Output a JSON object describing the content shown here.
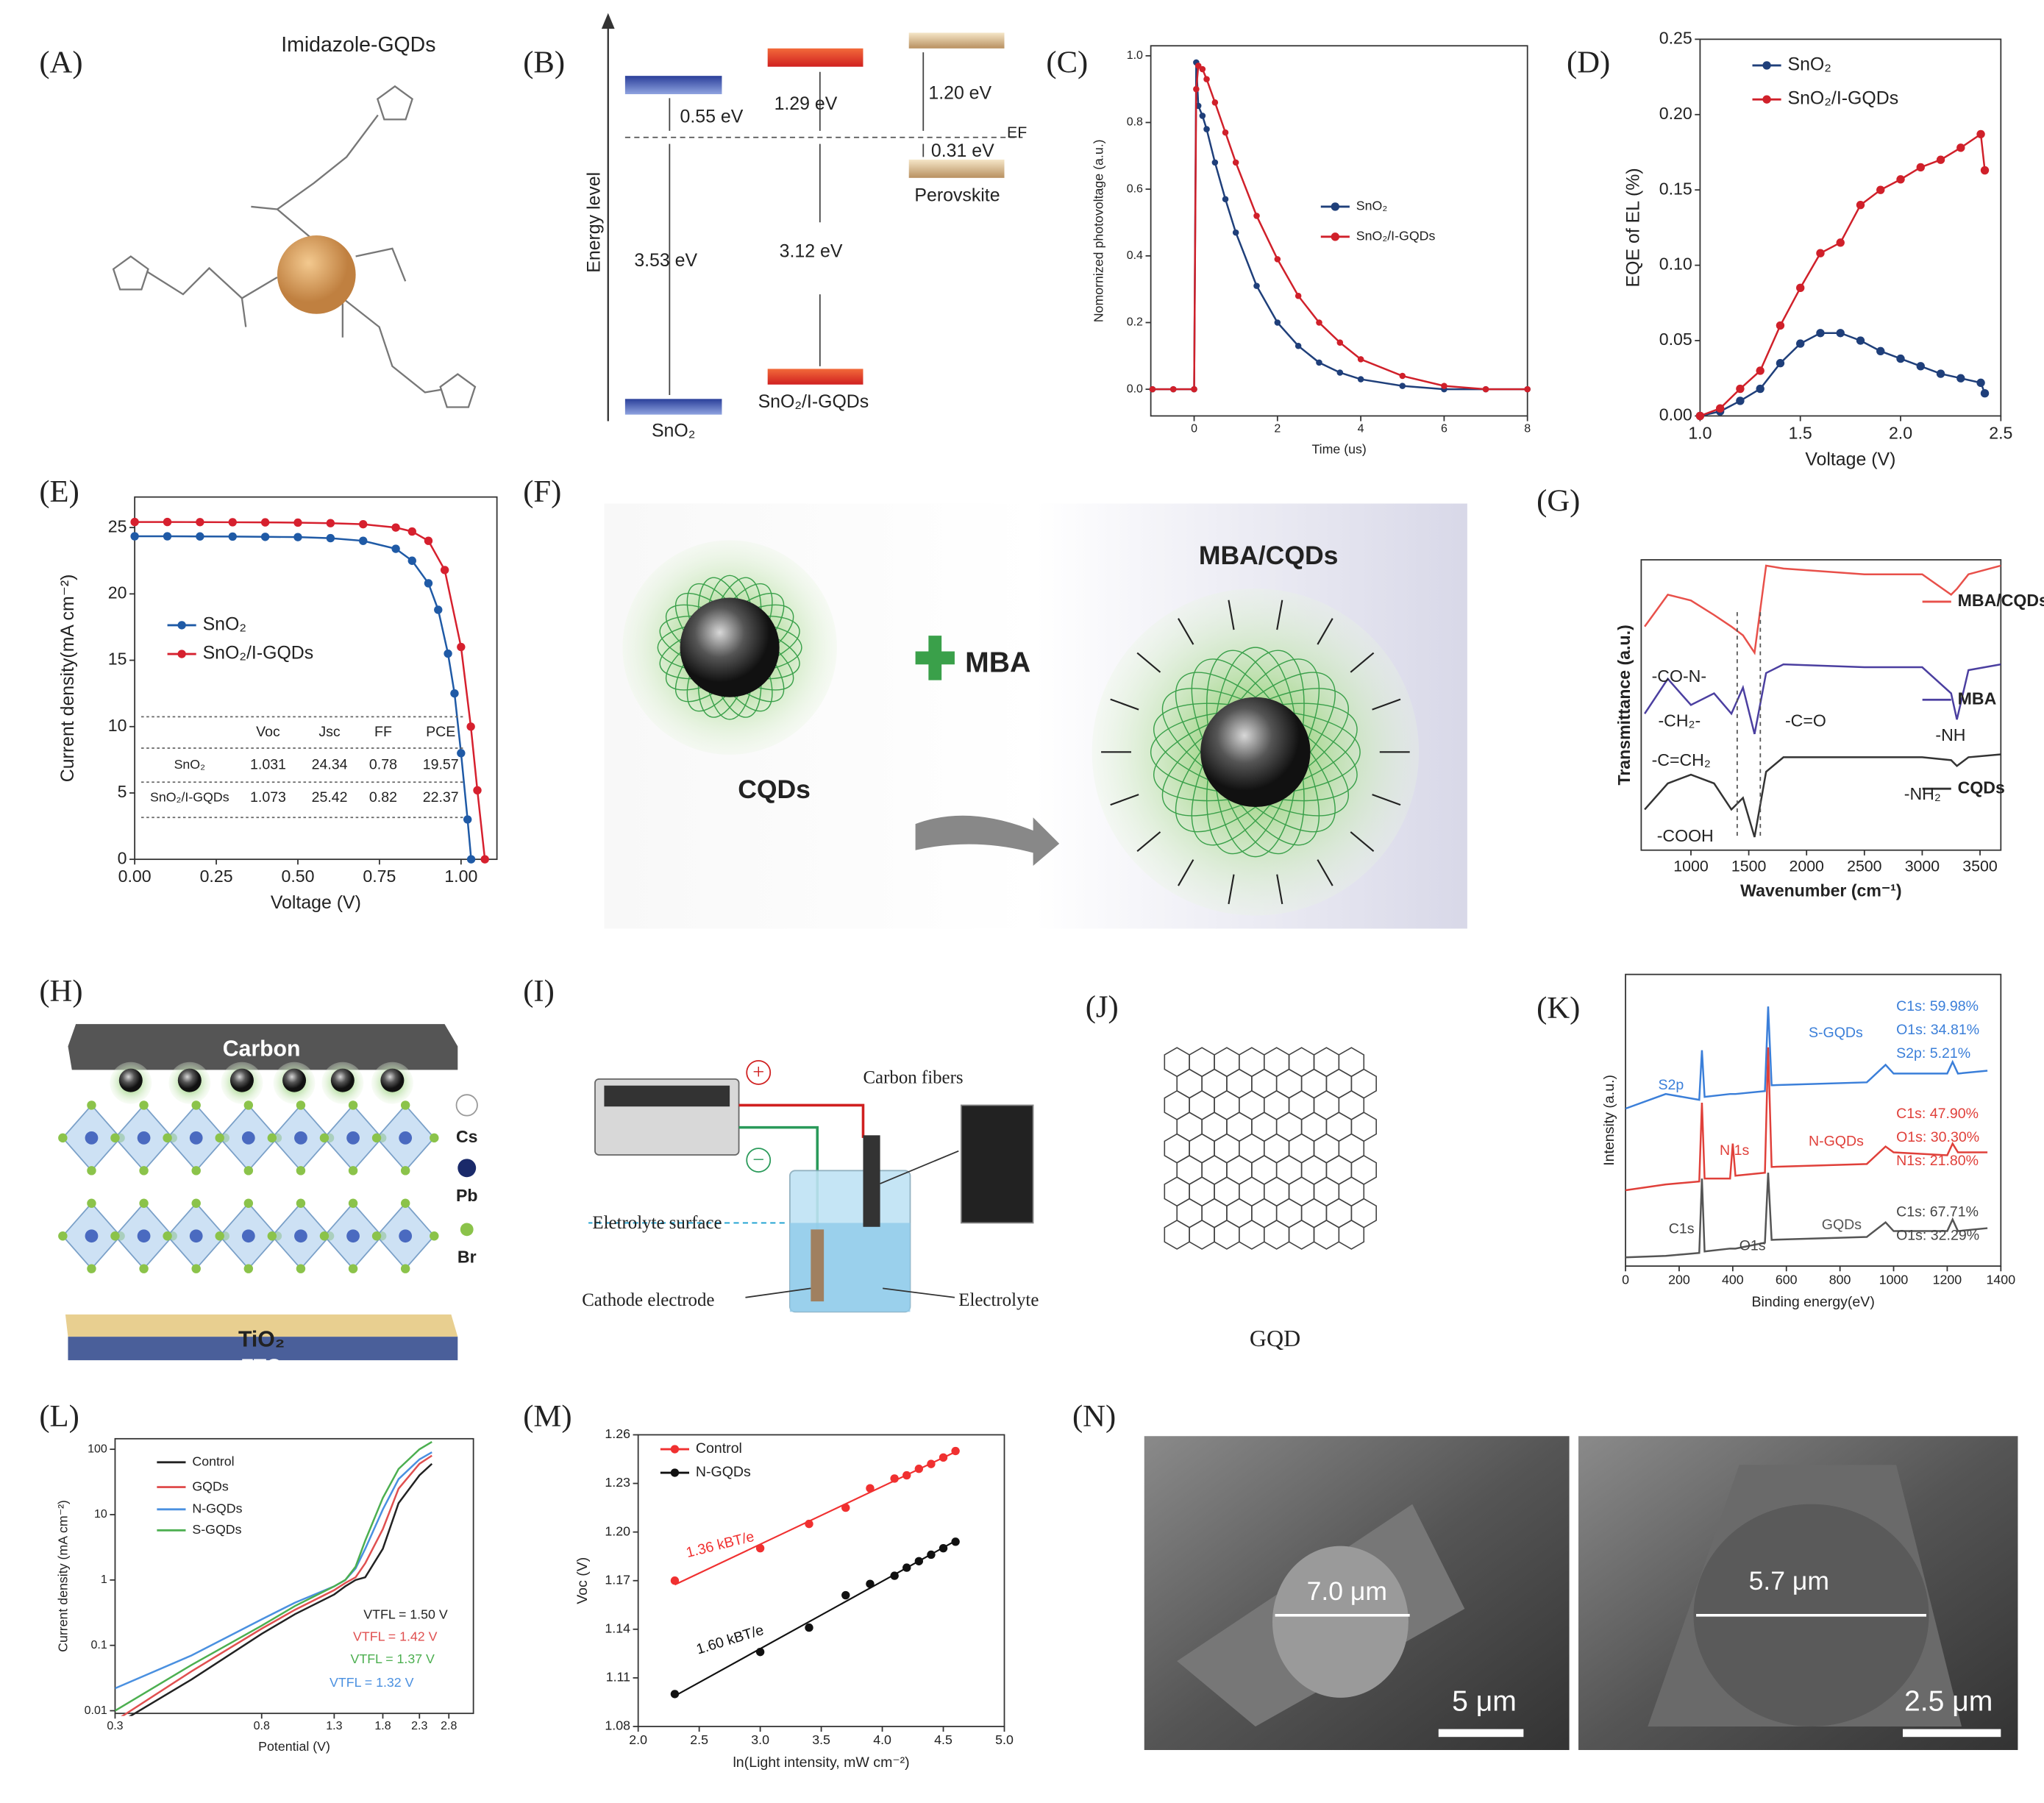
{
  "figure": {
    "panel_labels": [
      "(A)",
      "(B)",
      "(C)",
      "(D)",
      "(E)",
      "(F)",
      "(G)",
      "(H)",
      "(I)",
      "(J)",
      "(K)",
      "(L)",
      "(M)",
      "(N)"
    ],
    "A": {
      "label": "Imidazole-GQDs"
    },
    "B": {
      "y_label": "Energy level",
      "texts": [
        "0.55 eV",
        "1.29 eV",
        "1.20 eV",
        "EF",
        "0.31 eV",
        "Perovskite",
        "3.53 eV",
        "3.12 eV",
        "SnO₂",
        "SnO₂/I-GQDs"
      ]
    },
    "F": {
      "texts": [
        "CQDs",
        "MBA",
        "MBA/CQDs"
      ]
    },
    "H": {
      "texts": [
        "Carbon",
        "Cs",
        "Pb",
        "Br",
        "TiO₂",
        "FTO"
      ]
    },
    "I": {
      "texts": [
        "Carbon fibers",
        "Eletrolyte surface",
        "Cathode electrode",
        "Electrolyte",
        "+",
        "−"
      ]
    },
    "J": {
      "texts": [
        "GQD"
      ]
    },
    "N": {
      "texts": [
        "7.0 μm",
        "5 μm",
        "5.7 μm",
        "2.5 μm"
      ]
    }
  },
  "chart_data": [
    {
      "type": "line",
      "markers": true,
      "x_label": "Time (us)",
      "y_label": "Nomornized photovoltage (a.u.)",
      "xlim": [
        -1.04,
        8
      ],
      "ylim": [
        -0.08,
        1.03
      ],
      "xticks": [
        0,
        2,
        4,
        6,
        8
      ],
      "yticks": [
        {
          "value": 0,
          "label": "0.0"
        },
        0.2,
        0.4,
        0.6,
        0.8,
        {
          "value": 1,
          "label": "1.0"
        }
      ],
      "x": [
        -1,
        -0.5,
        0,
        0.05,
        0.1,
        0.2,
        0.3,
        0.5,
        0.75,
        1,
        1.5,
        2,
        2.5,
        3,
        3.5,
        4,
        5,
        6,
        7,
        8
      ],
      "series": [
        {
          "name": "SnO₂",
          "color": "#1f3f7a",
          "values": [
            0,
            0,
            0,
            0.98,
            0.85,
            0.82,
            0.78,
            0.68,
            0.57,
            0.47,
            0.31,
            0.2,
            0.13,
            0.08,
            0.05,
            0.03,
            0.01,
            0,
            0,
            0
          ]
        },
        {
          "name": "SnO₂/I-GQDs",
          "color": "#d0202a",
          "values": [
            0,
            0,
            0,
            0.9,
            0.97,
            0.96,
            0.93,
            0.86,
            0.77,
            0.68,
            0.52,
            0.39,
            0.28,
            0.2,
            0.14,
            0.09,
            0.04,
            0.01,
            0,
            0
          ]
        }
      ]
    },
    {
      "type": "line",
      "markers": true,
      "x_label": "Voltage (V)",
      "y_label": "EQE of EL (%)",
      "xlim": [
        1,
        2.5
      ],
      "ylim": [
        0,
        0.25
      ],
      "xticks": [
        {
          "value": 1,
          "label": "1.0"
        },
        1.5,
        {
          "value": 2,
          "label": "2.0"
        },
        2.5
      ],
      "yticks": [
        {
          "value": 0,
          "label": "0.00"
        },
        0.05,
        {
          "value": 0.1,
          "label": "0.10"
        },
        0.15,
        {
          "value": 0.2,
          "label": "0.20"
        },
        0.25
      ],
      "x": [
        1,
        1.1,
        1.2,
        1.3,
        1.4,
        1.5,
        1.6,
        1.7,
        1.8,
        1.9,
        2,
        2.1,
        2.2,
        2.3,
        2.4,
        2.42
      ],
      "series": [
        {
          "name": "SnO₂",
          "color": "#1f3f7a",
          "values": [
            0,
            0.003,
            0.01,
            0.018,
            0.035,
            0.048,
            0.055,
            0.055,
            0.05,
            0.043,
            0.038,
            0.033,
            0.028,
            0.025,
            0.022,
            0.015
          ]
        },
        {
          "name": "SnO₂/I-GQDs",
          "color": "#d0202a",
          "values": [
            0,
            0.005,
            0.018,
            0.03,
            0.06,
            0.085,
            0.108,
            0.115,
            0.14,
            0.15,
            0.157,
            0.165,
            0.17,
            0.178,
            0.187,
            0.163
          ]
        }
      ]
    },
    {
      "type": "line",
      "markers": true,
      "x_label": "Voltage (V)",
      "y_label": "Current density(mA cm⁻²)",
      "xlim": [
        0,
        1.11
      ],
      "ylim": [
        0,
        27.3
      ],
      "xticks": [
        {
          "value": 0,
          "label": "0.00"
        },
        0.25,
        {
          "value": 0.5,
          "label": "0.50"
        },
        0.75,
        {
          "value": 1,
          "label": "1.00"
        }
      ],
      "yticks": [
        0,
        5,
        10,
        15,
        20,
        25
      ],
      "series": [
        {
          "name": "SnO₂",
          "color": "#1f5aa6",
          "x": [
            0,
            0.1,
            0.2,
            0.3,
            0.4,
            0.5,
            0.6,
            0.7,
            0.8,
            0.85,
            0.9,
            0.93,
            0.96,
            0.98,
            1,
            1.02,
            1.031
          ],
          "values": [
            24.34,
            24.34,
            24.33,
            24.32,
            24.3,
            24.28,
            24.2,
            24,
            23.4,
            22.5,
            20.8,
            18.8,
            15.5,
            12.5,
            8,
            3,
            0
          ]
        },
        {
          "name": "SnO₂/I-GQDs",
          "color": "#d6202e",
          "x": [
            0,
            0.1,
            0.2,
            0.3,
            0.4,
            0.5,
            0.6,
            0.7,
            0.8,
            0.85,
            0.9,
            0.95,
            1,
            1.03,
            1.05,
            1.073
          ],
          "values": [
            25.42,
            25.42,
            25.41,
            25.4,
            25.39,
            25.37,
            25.33,
            25.25,
            25,
            24.7,
            24,
            21.8,
            16,
            10,
            5.2,
            0
          ]
        }
      ],
      "table": {
        "columns": [
          "Voc",
          "Jsc",
          "FF",
          "PCE"
        ],
        "rows": [
          [
            "SnO₂",
            1.031,
            24.34,
            0.78,
            19.57
          ],
          [
            "SnO₂/I-GQDs",
            1.073,
            25.42,
            0.82,
            22.37
          ]
        ]
      }
    },
    {
      "type": "line",
      "x_label": "Wavenumber (cm⁻¹)",
      "y_label": "Transmittance (a.u.)",
      "xlim": [
        570,
        3680
      ],
      "ylim": [
        0,
        10
      ],
      "xticks": [
        1000,
        1500,
        2000,
        2500,
        3000,
        3500
      ],
      "x": [
        600,
        800,
        1000,
        1200,
        1350,
        1450,
        1550,
        1650,
        1800,
        2500,
        3000,
        3250,
        3300,
        3400,
        3680
      ],
      "series": [
        {
          "name": "MBA/CQDs",
          "color": "#e8504a",
          "values": [
            7.7,
            8.8,
            8.6,
            8.1,
            7.7,
            7.4,
            6.8,
            9.8,
            9.7,
            9.5,
            9.5,
            8.8,
            9,
            9.5,
            9.8
          ]
        },
        {
          "name": "MBA",
          "color": "#4b3fa0",
          "values": [
            4.7,
            5.9,
            5,
            5.4,
            4.7,
            5.6,
            4,
            6.1,
            6.4,
            6.3,
            6.3,
            5.4,
            4.5,
            6.2,
            6.4
          ]
        },
        {
          "name": "CQDs",
          "color": "#333333",
          "values": [
            1.4,
            2.3,
            2.6,
            2.3,
            1.4,
            1.8,
            0.45,
            2.7,
            3.2,
            3.2,
            3.2,
            3.1,
            2.9,
            3.2,
            3.3
          ]
        }
      ],
      "annotations": [
        "-CO-N-",
        "-CH₂-",
        "-C=CH₂",
        "-C=O",
        "-NH",
        "-NH₂",
        "-COOH"
      ]
    },
    {
      "type": "line",
      "x_label": "Binding energy(eV)",
      "y_label": "Intensity (a.u.)",
      "xlim": [
        0,
        1400
      ],
      "ylim": [
        0,
        10
      ],
      "xticks": [
        0,
        200,
        400,
        600,
        800,
        1000,
        1200,
        1400
      ],
      "x": [
        0,
        150,
        275,
        285,
        295,
        390,
        400,
        410,
        520,
        532,
        545,
        900,
        970,
        1000,
        1200,
        1220,
        1240,
        1350
      ],
      "series": [
        {
          "name": "S-GQDs",
          "color": "#3b7fd9",
          "values": [
            5.4,
            5.9,
            5.7,
            7.4,
            5.8,
            5.9,
            5.9,
            5.9,
            6,
            8.9,
            6.2,
            6.3,
            6.9,
            6.6,
            6.6,
            7,
            6.6,
            6.7
          ]
        },
        {
          "name": "N-GQDs",
          "color": "#e0403a",
          "values": [
            2.6,
            2.8,
            2.9,
            5.6,
            3,
            3,
            4.2,
            3.1,
            3.2,
            7.5,
            3.4,
            3.5,
            4.1,
            3.9,
            3.8,
            4.2,
            3.9,
            3.9
          ]
        },
        {
          "name": "GQDs",
          "color": "#555555",
          "values": [
            0.3,
            0.35,
            0.45,
            3,
            0.5,
            0.6,
            0.6,
            0.6,
            0.8,
            3.2,
            0.9,
            1,
            1.5,
            1.2,
            1.2,
            1.6,
            1.2,
            1.3
          ]
        }
      ],
      "annotations": [
        "S2p",
        "N 1s",
        "C1s",
        "O1s",
        "C1s: 59.98%",
        "O1s: 34.81%",
        "S2p: 5.21%",
        "C1s: 47.90%",
        "O1s: 30.30%",
        "N1s: 21.80%",
        "C1s: 67.71%",
        "O1s: 32.29%"
      ]
    },
    {
      "type": "line",
      "log_x": true,
      "log_y": true,
      "x_label": "Potential (V)",
      "y_label": "Current density (mA cm⁻²)",
      "xlim": [
        0.3,
        3.3
      ],
      "ylim": [
        0.0091,
        145
      ],
      "xticks": [
        0.3,
        0.8,
        1.3,
        1.8,
        2.3,
        2.8
      ],
      "yticks": [
        0.01,
        0.1,
        1,
        10,
        100
      ],
      "x": [
        0.3,
        0.5,
        0.8,
        1,
        1.3,
        1.4,
        1.5,
        1.6,
        1.8,
        2,
        2.3,
        2.5
      ],
      "series": [
        {
          "name": "Control",
          "color": "#222222",
          "values": [
            0.006,
            0.03,
            0.15,
            0.3,
            0.6,
            0.8,
            1,
            1.1,
            3,
            15,
            40,
            60
          ]
        },
        {
          "name": "GQDs",
          "color": "#e05050",
          "values": [
            0.007,
            0.04,
            0.18,
            0.35,
            0.7,
            0.9,
            1.1,
            1.8,
            6,
            25,
            60,
            80
          ]
        },
        {
          "name": "N-GQDs",
          "color": "#4a90e0",
          "values": [
            0.022,
            0.07,
            0.25,
            0.45,
            0.8,
            1,
            1.5,
            3,
            12,
            35,
            70,
            90
          ]
        },
        {
          "name": "S-GQDs",
          "color": "#4caf50",
          "values": [
            0.01,
            0.05,
            0.2,
            0.4,
            0.8,
            1,
            1.6,
            4,
            18,
            50,
            100,
            130
          ]
        }
      ],
      "annotations": [
        "VTFL = 1.50 V",
        "VTFL = 1.42 V",
        "VTFL = 1.37 V",
        "VTFL = 1.32 V"
      ]
    },
    {
      "type": "scatter",
      "markers": true,
      "x_label": "ln(Light intensity, mW cm⁻²)",
      "y_label": "Voc (V)",
      "xlim": [
        2,
        5
      ],
      "ylim": [
        1.08,
        1.26
      ],
      "xticks": [
        {
          "value": 2,
          "label": "2.0"
        },
        2.5,
        {
          "value": 3,
          "label": "3.0"
        },
        3.5,
        {
          "value": 4,
          "label": "4.0"
        },
        4.5,
        {
          "value": 5,
          "label": "5.0"
        }
      ],
      "yticks": [
        1.08,
        1.11,
        1.14,
        1.17,
        {
          "value": 1.2,
          "label": "1.20"
        },
        1.23,
        1.26
      ],
      "x": [
        2.3,
        3,
        3.4,
        3.7,
        3.9,
        4.1,
        4.2,
        4.3,
        4.4,
        4.5,
        4.6
      ],
      "series": [
        {
          "name": "Control",
          "color": "#f03030",
          "values": [
            1.17,
            1.19,
            1.205,
            1.215,
            1.227,
            1.233,
            1.235,
            1.239,
            1.242,
            1.246,
            1.25
          ]
        },
        {
          "name": "N-GQDs",
          "color": "#111111",
          "values": [
            1.1,
            1.126,
            1.141,
            1.161,
            1.168,
            1.173,
            1.178,
            1.182,
            1.186,
            1.19,
            1.194
          ]
        }
      ],
      "annotations": [
        "1.36 kBT/e",
        "1.60 kBT/e"
      ]
    }
  ]
}
